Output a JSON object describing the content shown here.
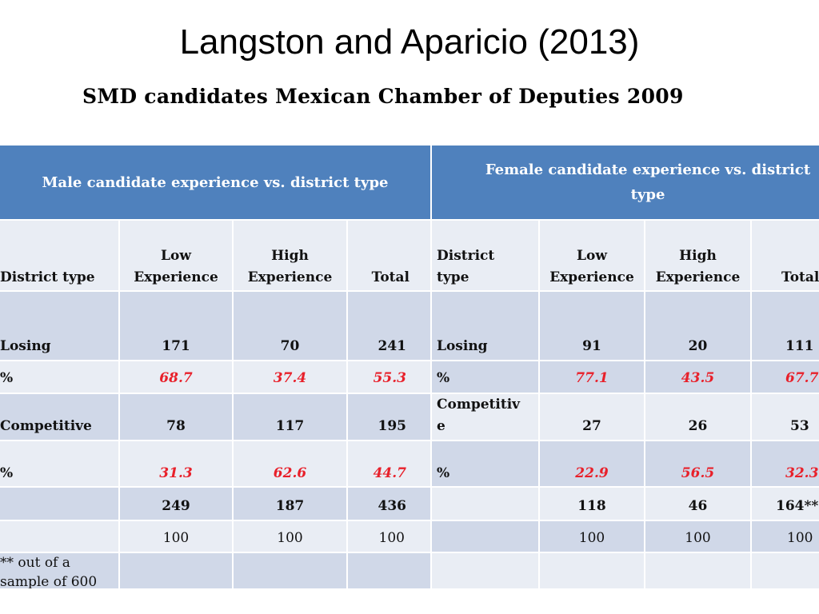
{
  "slide_title": "Langston and Aparicio (2013)",
  "table_title": "SMD candidates Mexican Chamber of Deputies 2009",
  "male": {
    "header": "Male candidate experience vs. district type",
    "col_district": "District type",
    "col_low": [
      "Low",
      "Experience"
    ],
    "col_high": [
      "High",
      "Experience"
    ],
    "col_total": "Total",
    "rows": [
      {
        "label": "Losing",
        "low": "171",
        "high": "70",
        "total": "241"
      },
      {
        "label": "%",
        "low": "68.7",
        "high": "37.4",
        "total": "55.3"
      },
      {
        "label": "Competitive",
        "low": "78",
        "high": "117",
        "total": "195"
      },
      {
        "label": "%",
        "low": "31.3",
        "high": "62.6",
        "total": "44.7"
      },
      {
        "label": "",
        "low": "249",
        "high": "187",
        "total": "436"
      },
      {
        "label": "",
        "low": "100",
        "high": "100",
        "total": "100"
      }
    ],
    "footnote": [
      "** out of a",
      "sample of 600"
    ]
  },
  "female": {
    "header": [
      "Female candidate experience vs. district",
      "type"
    ],
    "col_district": [
      "District",
      "type"
    ],
    "col_low": [
      "Low",
      "Experience"
    ],
    "col_high": [
      "High",
      "Experience"
    ],
    "col_total": "Total",
    "rows": [
      {
        "label": "Losing",
        "low": "91",
        "high": "20",
        "total": "111"
      },
      {
        "label": "%",
        "low": "77.1",
        "high": "43.5",
        "total": "67.7"
      },
      {
        "label": [
          "Competitiv",
          "e"
        ],
        "low": "27",
        "high": "26",
        "total": "53"
      },
      {
        "label": "%",
        "low": "22.9",
        "high": "56.5",
        "total": "32.3"
      },
      {
        "label": "",
        "low": "118",
        "high": "46",
        "total": "164**"
      },
      {
        "label": "",
        "low": "100",
        "high": "100",
        "total": "100"
      }
    ]
  },
  "colors": {
    "header_bg": "#4f81bd",
    "row_light": "#e9edf4",
    "row_dark": "#d0d8e8",
    "percent_text": "#e8202a"
  }
}
